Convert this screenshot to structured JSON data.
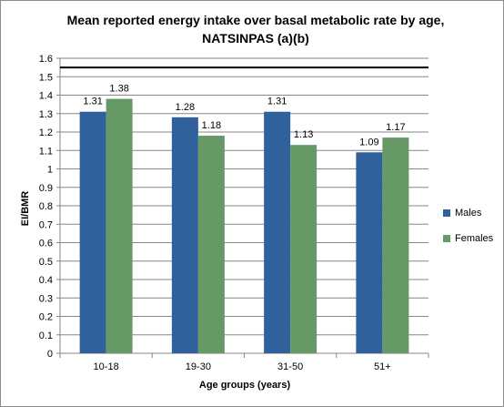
{
  "chart_data": {
    "type": "bar",
    "title_line1": "Mean reported energy intake over basal metabolic rate by age,",
    "title_line2": "NATSINPAS  (a)(b)",
    "xlabel": "Age groups (years)",
    "ylabel": "EI/BMR",
    "categories": [
      "10-18",
      "19-30",
      "31-50",
      "51+"
    ],
    "series": [
      {
        "name": "Males",
        "color": "#31619c",
        "values": [
          1.31,
          1.28,
          1.31,
          1.09
        ],
        "labels": [
          "1.31",
          "1.28",
          "1.31",
          "1.09"
        ]
      },
      {
        "name": "Females",
        "color": "#669966",
        "values": [
          1.38,
          1.18,
          1.13,
          1.17
        ],
        "labels": [
          "1.38",
          "1.18",
          "1.13",
          "1.17"
        ]
      }
    ],
    "ylim": [
      0,
      1.6
    ],
    "ytick_labels": [
      "0",
      "0.1",
      "0.2",
      "0.3",
      "0.4",
      "0.5",
      "0.6",
      "0.7",
      "0.8",
      "0.9",
      "1",
      "1.1",
      "1.2",
      "1.3",
      "1.4",
      "1.5",
      "1.6"
    ],
    "reference_line": 1.55,
    "grid": true,
    "legend_position": "right"
  }
}
